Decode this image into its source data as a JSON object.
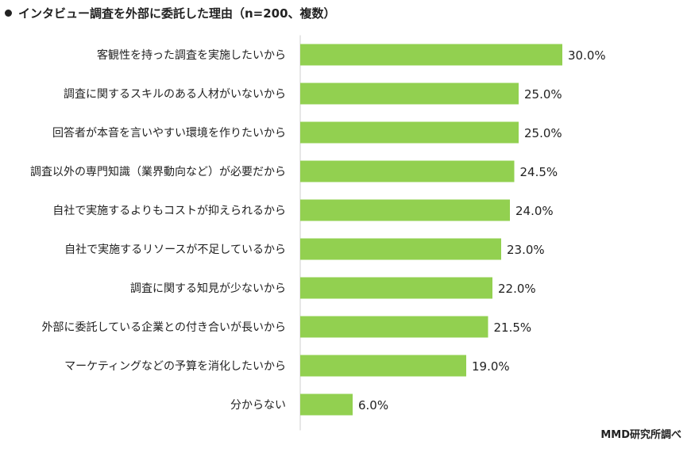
{
  "header": {
    "bullet_icon": "filled-circle-icon",
    "title": "インタビュー調査を外部に委託した理由（n=200、複数）"
  },
  "footer": {
    "source": "MMD研究所調べ"
  },
  "colors": {
    "bar": "#92D050",
    "axis": "#cfcfcf"
  },
  "chart_data": {
    "type": "bar",
    "orientation": "horizontal",
    "title": "インタビュー調査を外部に委託した理由（n=200、複数）",
    "categories": [
      "客観性を持った調査を実施したいから",
      "調査に関するスキルのある人材がいないから",
      "回答者が本音を言いやすい環境を作りたいから",
      "調査以外の専門知識（業界動向など）が必要だから",
      "自社で実施するよりもコストが抑えられるから",
      "自社で実施するリソースが不足しているから",
      "調査に関する知見が少ないから",
      "外部に委託している企業との付き合いが長いから",
      "マーケティングなどの予算を消化したいから",
      "分からない"
    ],
    "values": [
      30.0,
      25.0,
      25.0,
      24.5,
      24.0,
      23.0,
      22.0,
      21.5,
      19.0,
      6.0
    ],
    "value_labels": [
      "30.0%",
      "25.0%",
      "25.0%",
      "24.5%",
      "24.0%",
      "23.0%",
      "22.0%",
      "21.5%",
      "19.0%",
      "6.0%"
    ],
    "xlim": [
      0,
      30
    ],
    "grid": false,
    "legend": "none"
  }
}
